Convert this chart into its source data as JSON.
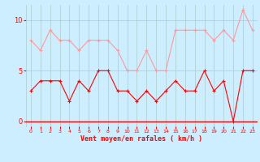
{
  "x": [
    0,
    1,
    2,
    3,
    4,
    5,
    6,
    7,
    8,
    9,
    10,
    11,
    12,
    13,
    14,
    15,
    16,
    17,
    18,
    19,
    20,
    21,
    22,
    23
  ],
  "wind_avg": [
    3,
    4,
    4,
    4,
    2,
    4,
    3,
    5,
    5,
    3,
    3,
    2,
    3,
    2,
    3,
    4,
    3,
    3,
    5,
    3,
    4,
    0,
    5,
    5
  ],
  "wind_gust": [
    8,
    7,
    9,
    8,
    8,
    7,
    8,
    8,
    8,
    7,
    5,
    5,
    7,
    5,
    5,
    9,
    9,
    9,
    9,
    8,
    9,
    8,
    11,
    9
  ],
  "color_avg": "#ff0000",
  "color_gust": "#ff9999",
  "bg_color": "#cceeff",
  "grid_color": "#aacccc",
  "xlabel": "Vent moyen/en rafales ( km/h )",
  "yticks": [
    0,
    5,
    10
  ],
  "ylim": [
    -0.5,
    11.5
  ],
  "xlim": [
    -0.5,
    23.5
  ],
  "yticklabels": [
    "0",
    "5",
    "10"
  ]
}
